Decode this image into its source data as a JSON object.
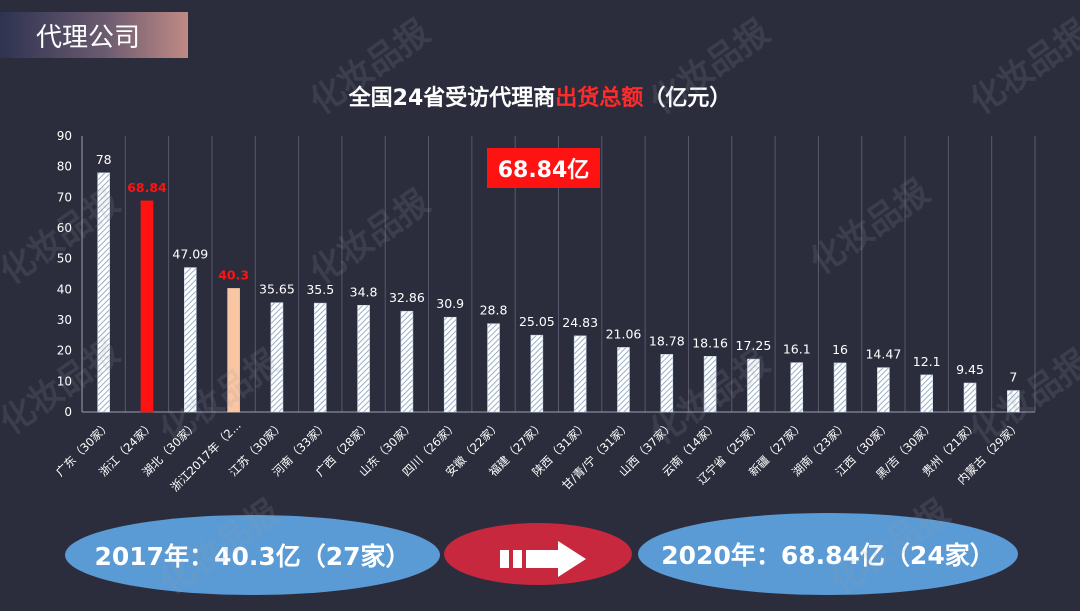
{
  "header": {
    "label": "代理公司"
  },
  "title": {
    "part1": "全国24省受访代理商",
    "highlight": "出货总额",
    "part2": "（亿元）"
  },
  "callout": {
    "text": "68.84亿"
  },
  "comparison": {
    "left": "2017年：40.3亿（27家）",
    "right": "2020年：68.84亿（24家）"
  },
  "watermark_text": "化妆品报",
  "colors": {
    "background": "#2b2d3c",
    "accent_red": "#ff1212",
    "highlight_peach": "#f9c6a3",
    "oval_blue": "#5b9bd5",
    "oval_red": "#c8283e"
  },
  "chart_data": {
    "type": "bar",
    "categories": [
      "广东（30家）",
      "浙江（24家）",
      "湖北（30家）",
      "浙江2017年（2...",
      "江苏（30家）",
      "河南（33家）",
      "广西（28家）",
      "山东（30家）",
      "四川（26家）",
      "安徽（22家）",
      "福建（27家）",
      "陕西（31家）",
      "甘/青/宁（31家）",
      "山西（37家）",
      "云南（14家）",
      "辽宁省（25家）",
      "新疆（27家）",
      "湖南（23家）",
      "江西（30家）",
      "黑/吉（30家）",
      "贵州（21家）",
      "内蒙古（29家）"
    ],
    "values": [
      78,
      68.84,
      47.09,
      40.3,
      35.65,
      35.5,
      34.8,
      32.86,
      30.9,
      28.8,
      25.05,
      24.83,
      21.06,
      18.78,
      18.16,
      17.25,
      16.1,
      16,
      14.47,
      12.1,
      9.45,
      7
    ],
    "value_labels": [
      "78",
      "68.84",
      "47.09",
      "40.3",
      "35.65",
      "35.5",
      "34.8",
      "32.86",
      "30.9",
      "28.8",
      "25.05",
      "24.83",
      "21.06",
      "18.78",
      "18.16",
      "17.25",
      "16.1",
      "16",
      "14.47",
      "12.1",
      "9.45",
      "7"
    ],
    "highlight": {
      "1": "red",
      "3": "peach"
    },
    "ylim": [
      0,
      90
    ],
    "yticks": [
      0,
      10,
      20,
      30,
      40,
      50,
      60,
      70,
      80,
      90
    ],
    "grid": "vertical category dividers",
    "legend": "none"
  }
}
